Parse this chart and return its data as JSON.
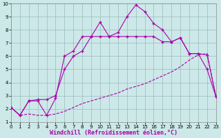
{
  "xlabel": "Windchill (Refroidissement éolien,°C)",
  "xlim": [
    0,
    23
  ],
  "ylim": [
    1,
    10
  ],
  "xticks": [
    0,
    1,
    2,
    3,
    4,
    5,
    6,
    7,
    8,
    9,
    10,
    11,
    12,
    13,
    14,
    15,
    16,
    17,
    18,
    19,
    20,
    21,
    22,
    23
  ],
  "yticks": [
    1,
    2,
    3,
    4,
    5,
    6,
    7,
    8,
    9,
    10
  ],
  "background_color": "#cce8e8",
  "line_color": "#aa00aa",
  "grid_color": "#99bbbb",
  "line1_x": [
    0,
    1,
    2,
    3,
    4,
    5,
    6,
    7,
    8,
    9,
    10,
    11,
    12,
    13,
    14,
    15,
    16,
    17,
    18,
    19,
    20,
    21,
    22,
    23
  ],
  "line1_y": [
    2.1,
    1.5,
    1.6,
    1.5,
    1.5,
    1.6,
    1.8,
    2.1,
    2.4,
    2.6,
    2.8,
    3.0,
    3.2,
    3.5,
    3.7,
    3.9,
    4.2,
    4.5,
    4.8,
    5.2,
    5.7,
    6.1,
    6.2,
    2.9
  ],
  "line2_x": [
    0,
    1,
    2,
    3,
    4,
    5,
    6,
    7,
    8,
    9,
    10,
    11,
    12,
    13,
    14,
    15,
    16,
    17,
    18,
    19,
    20,
    21,
    22,
    23
  ],
  "line2_y": [
    2.1,
    1.5,
    2.6,
    2.7,
    2.7,
    3.0,
    5.0,
    6.0,
    6.4,
    7.5,
    7.5,
    7.5,
    7.5,
    7.5,
    7.5,
    7.5,
    7.5,
    7.1,
    7.1,
    7.4,
    6.2,
    6.2,
    6.1,
    2.9
  ],
  "line3_x": [
    0,
    1,
    2,
    3,
    4,
    5,
    6,
    7,
    8,
    9,
    10,
    11,
    12,
    13,
    14,
    15,
    16,
    17,
    18,
    19,
    20,
    21,
    22,
    23
  ],
  "line3_y": [
    2.1,
    1.5,
    2.6,
    2.6,
    1.5,
    2.8,
    6.0,
    6.4,
    7.5,
    7.5,
    8.6,
    7.5,
    7.8,
    9.0,
    9.9,
    9.4,
    8.5,
    8.0,
    7.1,
    7.4,
    6.2,
    6.2,
    5.0,
    2.9
  ],
  "marker": "+",
  "markersize": 3,
  "linewidth": 0.8,
  "tick_fontsize": 5,
  "xlabel_fontsize": 6
}
